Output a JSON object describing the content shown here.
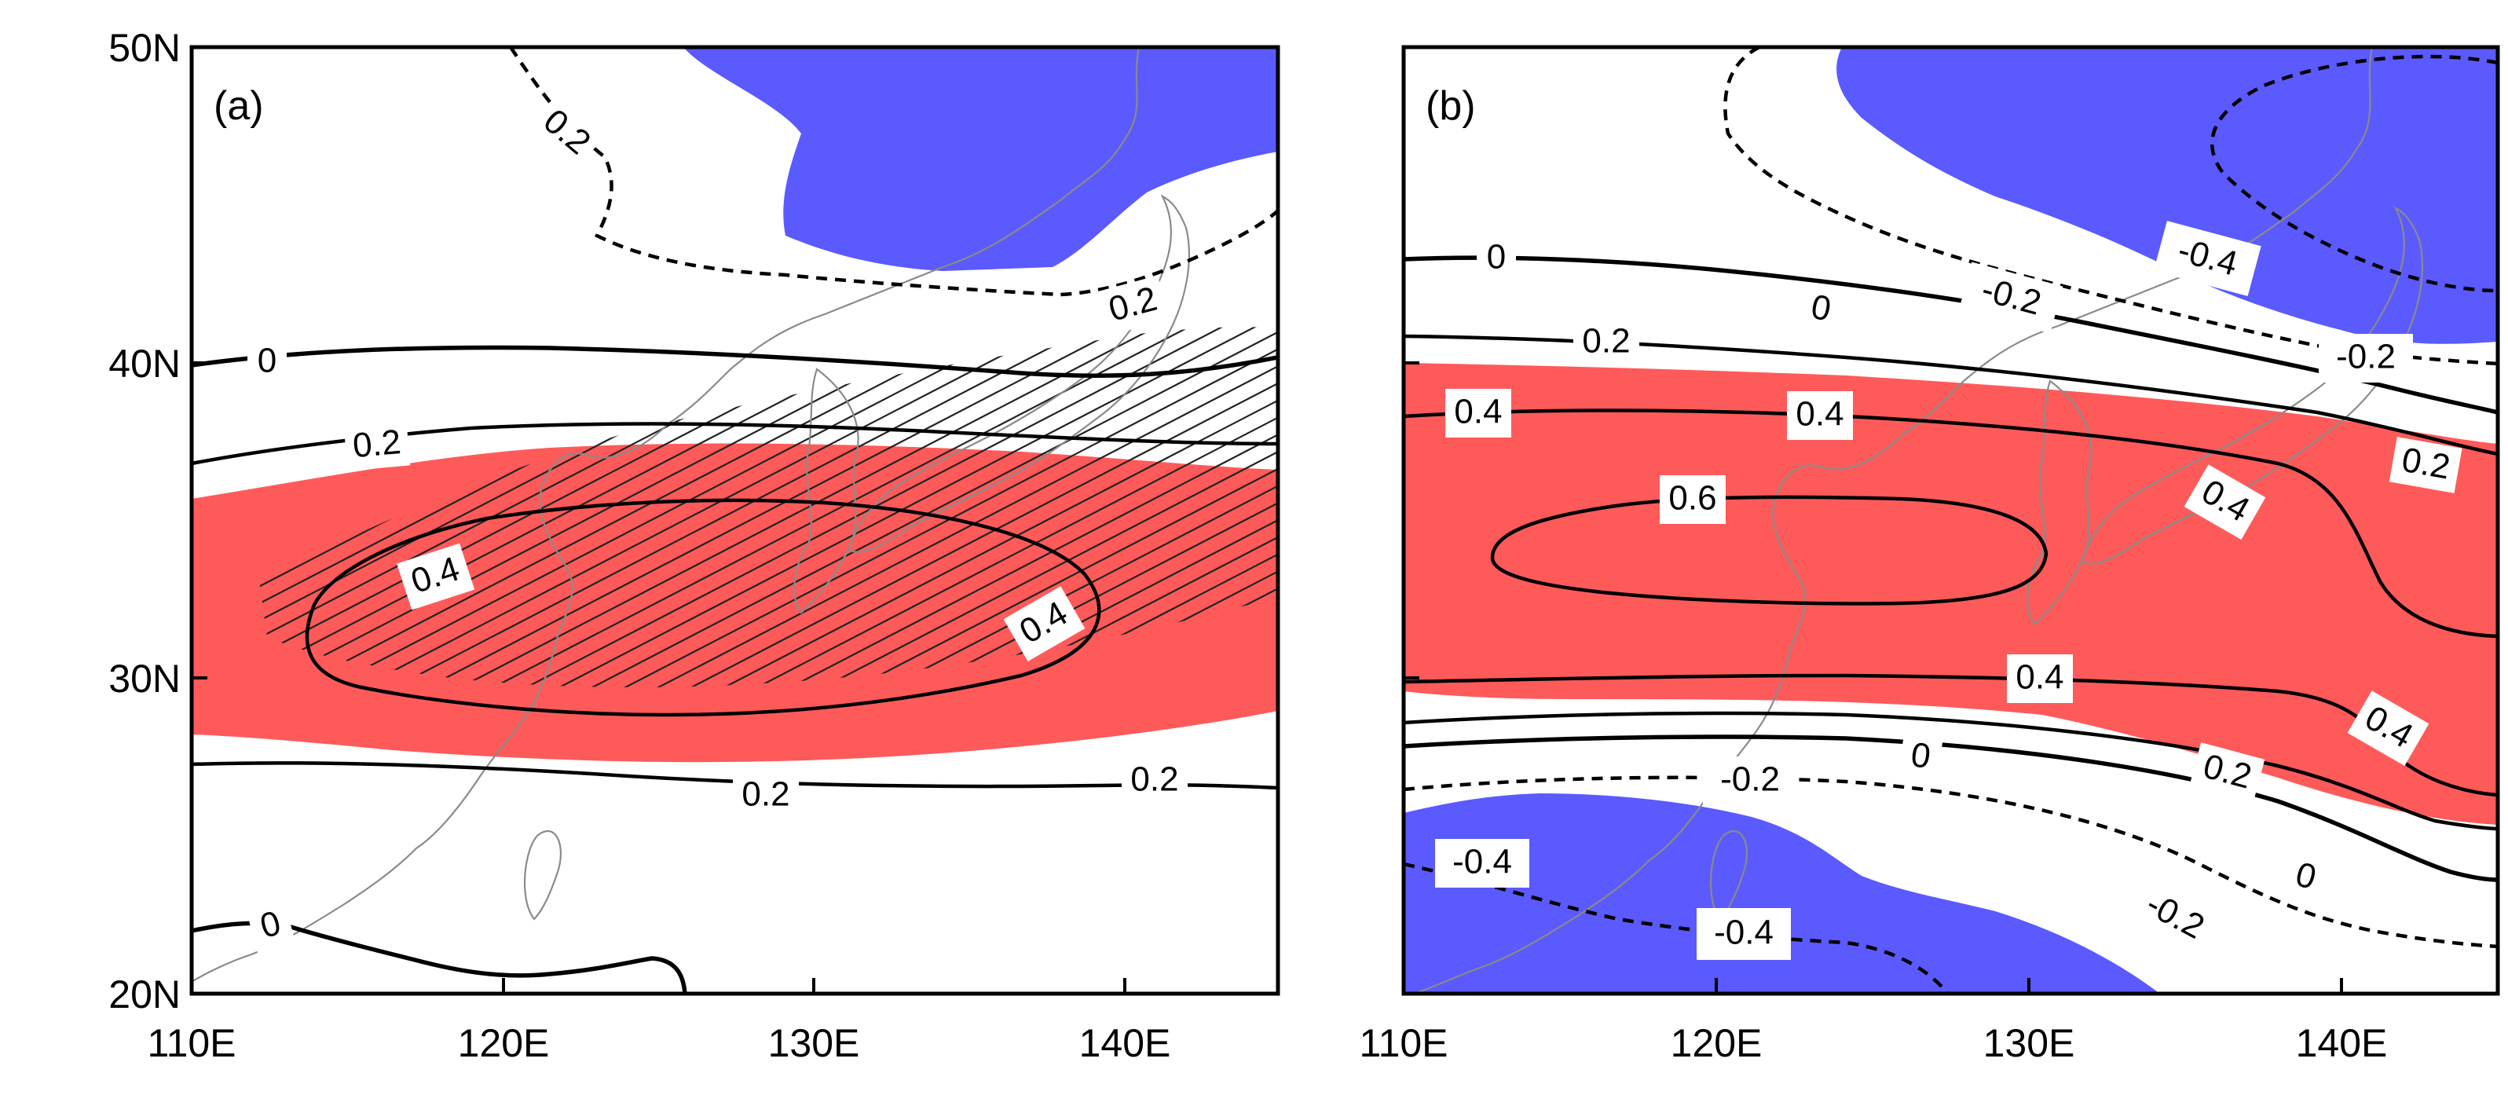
{
  "colors": {
    "positive_shade": "#FF5A5A",
    "negative_shade": "#5A5AFF",
    "contour": "#000000",
    "coastline": "#8A8A8A"
  },
  "axes": {
    "lat_ticks": [
      "50N",
      "40N",
      "30N",
      "20N"
    ],
    "lon_ticks": [
      "110E",
      "120E",
      "130E",
      "140E"
    ]
  },
  "panels": [
    {
      "tag": "(a)",
      "contour_labels": [
        "0.2",
        "0.2",
        "0",
        "0.2",
        "0.4",
        "0.4",
        "0.2",
        "0.2",
        "0"
      ]
    },
    {
      "tag": "(b)",
      "contour_labels": [
        "0",
        "0",
        "-0.4",
        "-0.2",
        "0.2",
        "-0.2",
        "0.4",
        "0.4",
        "0.6",
        "0.4",
        "0.2",
        "0.4",
        "0.4",
        "0",
        "0.2",
        "-0.2",
        "-0.4",
        "0",
        "-0.2",
        "-0.4"
      ]
    }
  ],
  "chart_data": {
    "type": "contour-map",
    "title": "",
    "xlabel": "",
    "ylabel": "",
    "xlim": [
      110,
      145
    ],
    "ylim": [
      20,
      50
    ],
    "x_ticks": [
      110,
      120,
      130,
      140
    ],
    "y_ticks": [
      20,
      30,
      40,
      50
    ],
    "panels": [
      {
        "name": "(a)",
        "contour_levels": [
          -0.2,
          0,
          0.2,
          0.4
        ],
        "shading": "positive above threshold (red, ~30-36N band), negative (blue, NE corner north of 43N)",
        "stippling": "hatched significance region ~30-40N, 112-145E"
      },
      {
        "name": "(b)",
        "contour_levels": [
          -0.4,
          -0.2,
          0,
          0.2,
          0.4,
          0.6
        ],
        "shading": "positive (red) band ~28-40N; negative (blue) north of ~42N (130-145E) and south of ~26N (110-130E)"
      }
    ]
  }
}
